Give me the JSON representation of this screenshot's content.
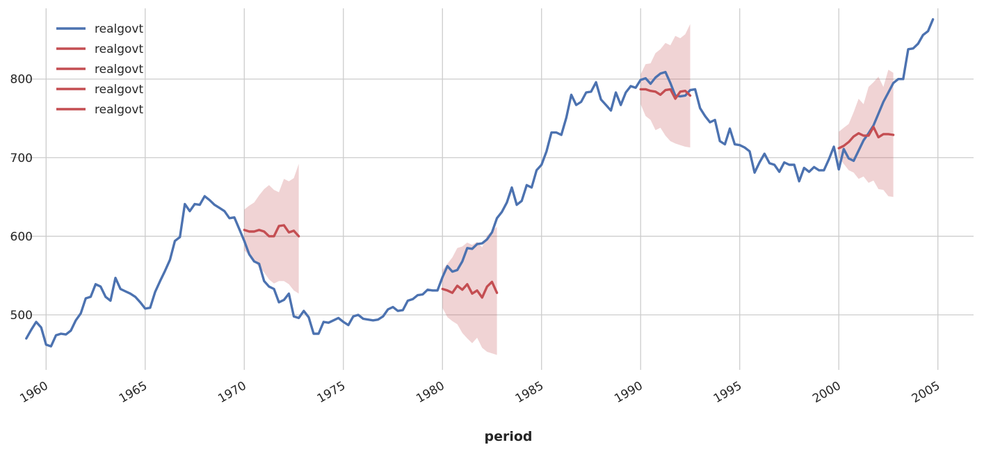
{
  "chart_data": {
    "type": "line",
    "title": "",
    "xlabel": "period",
    "ylabel": "",
    "grid": true,
    "legend_placement": "top-left",
    "xlim": [
      1958.2,
      2006.8
    ],
    "ylim": [
      430,
      890
    ],
    "x_ticks": [
      1960,
      1965,
      1970,
      1975,
      1980,
      1985,
      1990,
      1995,
      2000,
      2005
    ],
    "x_tick_labels": [
      "1960",
      "1965",
      "1970",
      "1975",
      "1980",
      "1985",
      "1990",
      "1995",
      "2000",
      "2005"
    ],
    "y_ticks": [
      500,
      600,
      700,
      800
    ],
    "y_tick_labels": [
      "500",
      "600",
      "700",
      "800"
    ],
    "colors": {
      "actual": "#4c72b0",
      "forecast": "#c44e52",
      "band": "#c44e52",
      "grid": "#cccccc"
    },
    "series": [
      {
        "name": "realgovt",
        "role": "actual",
        "x_start": 1959.0,
        "x_step": 0.25,
        "values": [
          470,
          481,
          491,
          484,
          462,
          460,
          474,
          476,
          475,
          480,
          493,
          502,
          521,
          523,
          539,
          536,
          523,
          518,
          547,
          533,
          530,
          527,
          523,
          516,
          508,
          509,
          529,
          543,
          556,
          570,
          594,
          599,
          641,
          632,
          641,
          640,
          651,
          646,
          640,
          636,
          632,
          623,
          624,
          609,
          594,
          577,
          568,
          565,
          543,
          536,
          533,
          516,
          519,
          527,
          498,
          496,
          505,
          497,
          476,
          476,
          491,
          490,
          493,
          496,
          491,
          487,
          498,
          500,
          495,
          494,
          493,
          494,
          498,
          507,
          510,
          505,
          506,
          518,
          520,
          525,
          526,
          532,
          531,
          531,
          548,
          562,
          555,
          557,
          568,
          585,
          584,
          590,
          591,
          596,
          605,
          623,
          631,
          643,
          662,
          640,
          645,
          665,
          662,
          684,
          691,
          708,
          732,
          732,
          729,
          751,
          780,
          767,
          771,
          783,
          784,
          796,
          774,
          767,
          760,
          783,
          767,
          783,
          791,
          789,
          799,
          801,
          794,
          802,
          807,
          809,
          795,
          779,
          778,
          779,
          786,
          787,
          763,
          753,
          745,
          748,
          721,
          717,
          737,
          717,
          716,
          713,
          708,
          681,
          694,
          705,
          693,
          691,
          682,
          694,
          691,
          691,
          670,
          687,
          682,
          688,
          684,
          684,
          698,
          714,
          685,
          711,
          699,
          696,
          709,
          722,
          731,
          741,
          756,
          771,
          783,
          795,
          800,
          800,
          838,
          839,
          845,
          856,
          861,
          876
        ]
      },
      {
        "name": "realgovt",
        "role": "forecast",
        "x_start": 1970.0,
        "x_step": 0.25,
        "values": [
          608,
          606,
          606,
          608,
          606,
          600,
          600,
          613,
          614,
          605,
          607,
          600
        ],
        "lower": [
          582,
          576,
          568,
          561,
          554,
          545,
          540,
          543,
          543,
          539,
          531,
          527
        ],
        "upper": [
          634,
          639,
          643,
          652,
          660,
          665,
          659,
          656,
          673,
          670,
          674,
          692
        ]
      },
      {
        "name": "realgovt",
        "role": "forecast",
        "x_start": 1980.0,
        "x_step": 0.25,
        "values": [
          533,
          531,
          528,
          537,
          532,
          539,
          527,
          531,
          522,
          536,
          542,
          528
        ],
        "lower": [
          509,
          497,
          492,
          488,
          477,
          470,
          464,
          471,
          458,
          453,
          451,
          449
        ],
        "upper": [
          557,
          565,
          573,
          585,
          587,
          592,
          589,
          593,
          586,
          601,
          607,
          612
        ]
      },
      {
        "name": "realgovt",
        "role": "forecast",
        "x_start": 1990.0,
        "x_step": 0.25,
        "values": [
          787,
          787,
          785,
          784,
          780,
          786,
          787,
          775,
          784,
          785,
          779
        ],
        "lower": [
          768,
          753,
          748,
          735,
          738,
          728,
          721,
          718,
          716,
          714,
          713
        ],
        "upper": [
          806,
          819,
          820,
          833,
          838,
          846,
          843,
          855,
          852,
          857,
          870
        ]
      },
      {
        "name": "realgovt",
        "role": "forecast",
        "x_start": 2000.0,
        "x_step": 0.25,
        "values": [
          712,
          715,
          720,
          727,
          731,
          728,
          728,
          739,
          726,
          730,
          730,
          729
        ],
        "lower": [
          701,
          692,
          684,
          681,
          673,
          676,
          668,
          671,
          660,
          659,
          651,
          650
        ],
        "upper": [
          733,
          738,
          743,
          758,
          775,
          768,
          790,
          796,
          803,
          790,
          812,
          808
        ]
      }
    ]
  }
}
